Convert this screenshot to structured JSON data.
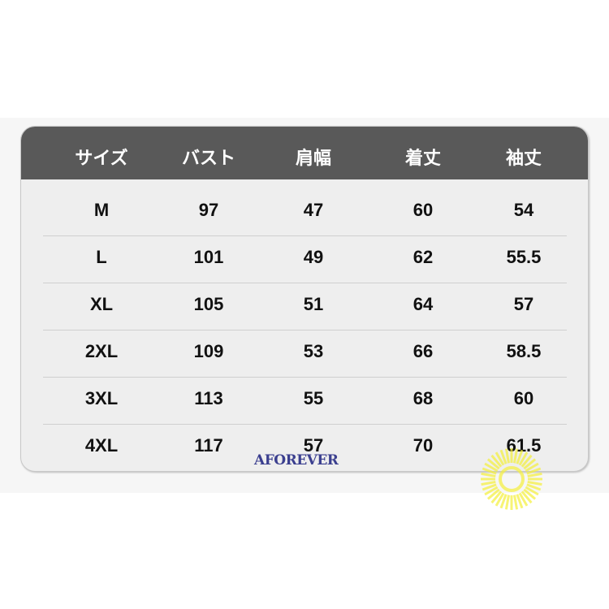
{
  "table": {
    "headers": [
      "サイズ",
      "バスト",
      "肩幅",
      "着丈",
      "袖丈"
    ],
    "rows": [
      [
        "M",
        "97",
        "47",
        "60",
        "54"
      ],
      [
        "L",
        "101",
        "49",
        "62",
        "55.5"
      ],
      [
        "XL",
        "105",
        "51",
        "64",
        "57"
      ],
      [
        "2XL",
        "109",
        "53",
        "66",
        "58.5"
      ],
      [
        "3XL",
        "113",
        "55",
        "68",
        "60"
      ],
      [
        "4XL",
        "117",
        "57",
        "70",
        "61.5"
      ]
    ]
  },
  "watermark": {
    "logo_text": "AFOREVER",
    "logo_color": "#3b3f8f",
    "sun_color": "#f5f03a"
  },
  "colors": {
    "header_bg": "#595959",
    "body_bg": "#eeeeee"
  }
}
